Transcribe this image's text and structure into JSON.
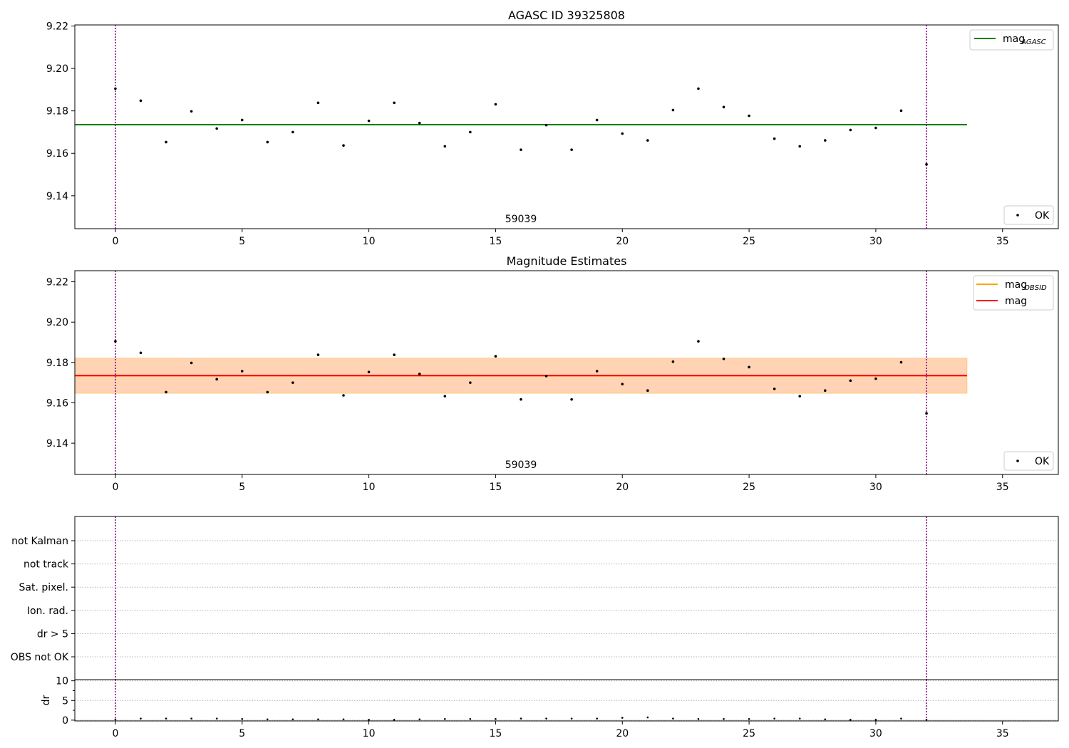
{
  "chart_data": [
    {
      "type": "scatter",
      "title": "AGASC ID 39325808",
      "x_ticks": [
        0,
        5,
        10,
        15,
        20,
        25,
        30,
        35
      ],
      "y_ticks": [
        "9.14",
        "9.16",
        "9.18",
        "9.20",
        "9.22"
      ],
      "xlim": [
        -1.6,
        37.2
      ],
      "ylim": [
        9.1245,
        9.2205
      ],
      "annotation": "59039",
      "annotation_x": 16,
      "vlines": [
        0,
        32
      ],
      "mag_agasc": 9.1735,
      "line_x_range": [
        -1.6,
        33.6
      ],
      "legend_top": [
        {
          "label": "mag",
          "subscript": "AGASC",
          "color": "#008000"
        }
      ],
      "legend_bottom": [
        {
          "label": "OK",
          "color": "#000000"
        }
      ],
      "points": [
        [
          0,
          9.1905
        ],
        [
          1,
          9.1848
        ],
        [
          2,
          9.1653
        ],
        [
          3,
          9.1798
        ],
        [
          4,
          9.1717
        ],
        [
          5,
          9.1757
        ],
        [
          6,
          9.1653
        ],
        [
          7,
          9.17
        ],
        [
          8,
          9.1838
        ],
        [
          9,
          9.1637
        ],
        [
          10,
          9.1753
        ],
        [
          11,
          9.1838
        ],
        [
          12,
          9.1743
        ],
        [
          13,
          9.1633
        ],
        [
          14,
          9.17
        ],
        [
          15,
          9.1831
        ],
        [
          16,
          9.1617
        ],
        [
          17,
          9.1733
        ],
        [
          18,
          9.1617
        ],
        [
          19,
          9.1757
        ],
        [
          20,
          9.1693
        ],
        [
          21,
          9.1661
        ],
        [
          22,
          9.1804
        ],
        [
          23,
          9.1905
        ],
        [
          24,
          9.1818
        ],
        [
          25,
          9.1777
        ],
        [
          26,
          9.1669
        ],
        [
          27,
          9.1633
        ],
        [
          28,
          9.1661
        ],
        [
          29,
          9.171
        ],
        [
          30,
          9.172
        ],
        [
          31,
          9.1801
        ],
        [
          32,
          9.1548
        ]
      ]
    },
    {
      "type": "scatter",
      "title": "Magnitude Estimates",
      "x_ticks": [
        0,
        5,
        10,
        15,
        20,
        25,
        30,
        35
      ],
      "y_ticks": [
        "9.14",
        "9.16",
        "9.18",
        "9.20",
        "9.22"
      ],
      "xlim": [
        -1.6,
        37.2
      ],
      "ylim": [
        9.1245,
        9.2255
      ],
      "annotation": "59039",
      "annotation_x": 16,
      "vlines": [
        0,
        32
      ],
      "mag_obsid": 9.1735,
      "mag": 9.1735,
      "band": [
        9.1647,
        9.1822
      ],
      "line_x_range": [
        -1.6,
        33.6
      ],
      "legend_top": [
        {
          "label": "mag",
          "subscript": "OBSID",
          "color": "#ffa500"
        },
        {
          "label": "mag",
          "subscript": "",
          "color": "#ff0000"
        }
      ],
      "legend_bottom": [
        {
          "label": "OK",
          "color": "#000000"
        }
      ],
      "points": [
        [
          0,
          9.1905
        ],
        [
          1,
          9.1848
        ],
        [
          2,
          9.1653
        ],
        [
          3,
          9.1798
        ],
        [
          4,
          9.1717
        ],
        [
          5,
          9.1757
        ],
        [
          6,
          9.1653
        ],
        [
          7,
          9.17
        ],
        [
          8,
          9.1838
        ],
        [
          9,
          9.1637
        ],
        [
          10,
          9.1753
        ],
        [
          11,
          9.1838
        ],
        [
          12,
          9.1743
        ],
        [
          13,
          9.1633
        ],
        [
          14,
          9.17
        ],
        [
          15,
          9.1831
        ],
        [
          16,
          9.1617
        ],
        [
          17,
          9.1733
        ],
        [
          18,
          9.1617
        ],
        [
          19,
          9.1757
        ],
        [
          20,
          9.1693
        ],
        [
          21,
          9.1661
        ],
        [
          22,
          9.1804
        ],
        [
          23,
          9.1905
        ],
        [
          24,
          9.1818
        ],
        [
          25,
          9.1777
        ],
        [
          26,
          9.1669
        ],
        [
          27,
          9.1633
        ],
        [
          28,
          9.1661
        ],
        [
          29,
          9.171
        ],
        [
          30,
          9.172
        ],
        [
          31,
          9.1801
        ],
        [
          32,
          9.1548
        ]
      ]
    },
    {
      "type": "scatter",
      "title": "",
      "x_ticks": [
        0,
        5,
        10,
        15,
        20,
        25,
        30,
        35
      ],
      "xlim": [
        -1.6,
        37.2
      ],
      "vlines": [
        0,
        32
      ],
      "flag_labels": [
        "not Kalman",
        "not track",
        "Sat. pixel.",
        "Ion. rad.",
        "dr > 5",
        "OBS not OK"
      ]
    },
    {
      "type": "scatter",
      "title": "",
      "ylabel": "dr",
      "x_ticks": [
        0,
        5,
        10,
        15,
        20,
        25,
        30,
        35
      ],
      "y_ticks": [
        "0",
        "5",
        "10"
      ],
      "xlim": [
        -1.6,
        37.2
      ],
      "ylim": [
        -0.2,
        10.3
      ],
      "vlines": [
        0,
        32
      ],
      "points": [
        [
          0,
          0.2
        ],
        [
          1,
          0.4
        ],
        [
          2,
          0.4
        ],
        [
          3,
          0.4
        ],
        [
          4,
          0.4
        ],
        [
          5,
          0.3
        ],
        [
          6,
          0.2
        ],
        [
          7,
          0.2
        ],
        [
          8,
          0.2
        ],
        [
          9,
          0.2
        ],
        [
          10,
          0.1
        ],
        [
          11,
          0.1
        ],
        [
          12,
          0.2
        ],
        [
          13,
          0.3
        ],
        [
          14,
          0.3
        ],
        [
          15,
          0.3
        ],
        [
          16,
          0.4
        ],
        [
          17,
          0.4
        ],
        [
          18,
          0.4
        ],
        [
          19,
          0.4
        ],
        [
          20,
          0.6
        ],
        [
          21,
          0.7
        ],
        [
          22,
          0.4
        ],
        [
          23,
          0.3
        ],
        [
          24,
          0.3
        ],
        [
          25,
          0.3
        ],
        [
          26,
          0.4
        ],
        [
          27,
          0.4
        ],
        [
          28,
          0.2
        ],
        [
          29,
          0.1
        ],
        [
          30,
          0.1
        ],
        [
          31,
          0.4
        ],
        [
          32,
          0.1
        ]
      ]
    }
  ]
}
